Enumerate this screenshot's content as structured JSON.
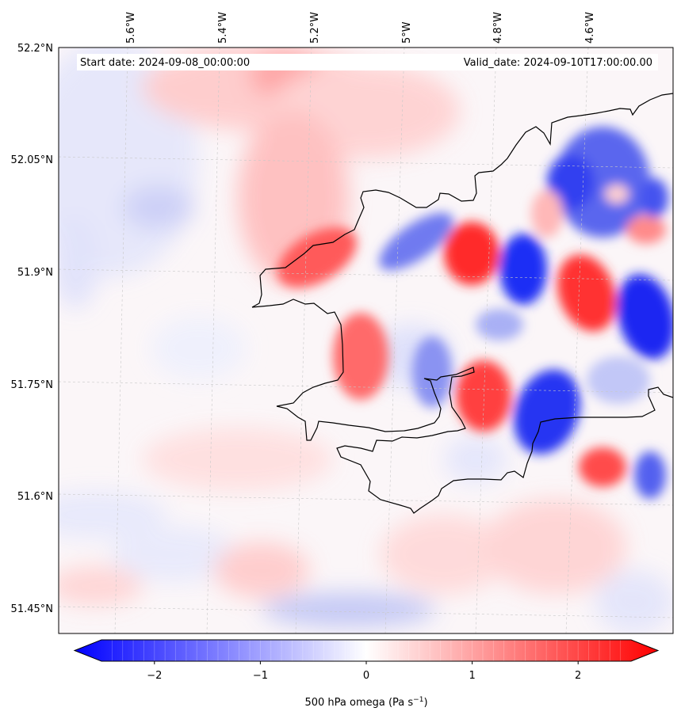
{
  "header": {
    "start_date": "Start date: 2024-09-08_00:00:00",
    "valid_date": "Valid_date: 2024-09-10T17:00:00.00"
  },
  "map": {
    "region": "South Wales coast / Bristol Channel",
    "longitude_labels": [
      "5.6°W",
      "5.4°W",
      "5.2°W",
      "5°W",
      "4.8°W",
      "4.6°W"
    ],
    "latitude_labels": [
      "52.2°N",
      "52.05°N",
      "51.9°N",
      "51.75°N",
      "51.6°N",
      "51.45°N"
    ],
    "field": "500 hPa vertical velocity (omega)",
    "palette": {
      "negative": "#0000ff",
      "zero": "#ffffff",
      "positive": "#ff0000"
    }
  },
  "colorbar": {
    "label": "500 hPa omega (Pa s⁻¹)",
    "min": -2.5,
    "max": 2.5,
    "tick_values": [
      -2,
      -1,
      0,
      1,
      2
    ],
    "tick_labels": [
      "−2",
      "−1",
      "0",
      "1",
      "2"
    ],
    "extend": "both"
  }
}
